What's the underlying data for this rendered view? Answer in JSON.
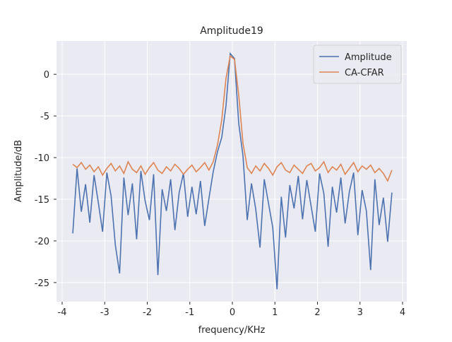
{
  "chart_data": {
    "type": "line",
    "title": "Amplitude19",
    "x_label": "frequency/KHz",
    "y_label": "Amplitude/dB",
    "x": [
      -3.75,
      -3.65,
      -3.55,
      -3.45,
      -3.35,
      -3.25,
      -3.15,
      -3.05,
      -2.95,
      -2.85,
      -2.75,
      -2.65,
      -2.55,
      -2.45,
      -2.35,
      -2.25,
      -2.15,
      -2.05,
      -1.95,
      -1.85,
      -1.75,
      -1.65,
      -1.55,
      -1.45,
      -1.35,
      -1.25,
      -1.15,
      -1.05,
      -0.95,
      -0.85,
      -0.75,
      -0.65,
      -0.55,
      -0.45,
      -0.35,
      -0.25,
      -0.15,
      -0.05,
      0.05,
      0.15,
      0.25,
      0.35,
      0.45,
      0.55,
      0.65,
      0.75,
      0.85,
      0.95,
      1.05,
      1.15,
      1.25,
      1.35,
      1.45,
      1.55,
      1.65,
      1.75,
      1.85,
      1.95,
      2.05,
      2.15,
      2.25,
      2.35,
      2.45,
      2.55,
      2.65,
      2.75,
      2.85,
      2.95,
      3.05,
      3.15,
      3.25,
      3.35,
      3.45,
      3.55,
      3.65,
      3.75
    ],
    "series": [
      {
        "name": "Amplitude",
        "color": "#4c72b0",
        "values": [
          -19.1,
          -11.3,
          -16.5,
          -13.2,
          -17.8,
          -12.1,
          -15.4,
          -18.9,
          -11.8,
          -14.6,
          -20.5,
          -23.9,
          -12.4,
          -16.9,
          -13.1,
          -19.8,
          -11.6,
          -15.2,
          -17.5,
          -12.0,
          -24.1,
          -13.8,
          -16.4,
          -12.6,
          -18.7,
          -14.2,
          -11.9,
          -17.1,
          -13.5,
          -16.8,
          -12.8,
          -18.2,
          -14.9,
          -11.7,
          -9.3,
          -7.6,
          -3.8,
          2.5,
          1.9,
          -5.9,
          -9.8,
          -17.5,
          -13.1,
          -16.2,
          -20.8,
          -12.6,
          -15.5,
          -18.4,
          -25.8,
          -14.7,
          -19.6,
          -13.3,
          -16.1,
          -12.2,
          -17.4,
          -12.7,
          -15.8,
          -18.9,
          -11.9,
          -14.3,
          -20.7,
          -13.5,
          -16.6,
          -12.4,
          -17.9,
          -14.1,
          -11.8,
          -19.3,
          -13.9,
          -16.4,
          -23.5,
          -12.6,
          -18.1,
          -14.8,
          -20.1,
          -14.2
        ]
      },
      {
        "name": "CA-CFAR",
        "color": "#dd8452",
        "values": [
          -10.8,
          -11.2,
          -10.6,
          -11.4,
          -10.9,
          -11.7,
          -11.1,
          -12.1,
          -11.3,
          -10.7,
          -11.6,
          -11.0,
          -11.9,
          -10.5,
          -11.4,
          -11.8,
          -11.0,
          -12.0,
          -11.2,
          -10.6,
          -11.5,
          -11.9,
          -11.1,
          -11.6,
          -10.8,
          -11.3,
          -12.0,
          -11.4,
          -10.9,
          -11.7,
          -11.2,
          -10.6,
          -11.5,
          -10.5,
          -8.5,
          -5.5,
          -0.5,
          2.2,
          1.8,
          -2.5,
          -8.3,
          -11.2,
          -11.9,
          -11.0,
          -11.6,
          -10.7,
          -11.3,
          -12.1,
          -11.1,
          -10.6,
          -11.5,
          -11.8,
          -10.9,
          -11.4,
          -11.9,
          -11.0,
          -10.7,
          -11.6,
          -11.2,
          -10.5,
          -11.8,
          -11.1,
          -11.5,
          -10.8,
          -12.0,
          -11.3,
          -10.6,
          -11.7,
          -11.0,
          -11.4,
          -10.9,
          -11.8,
          -11.3,
          -11.9,
          -12.8,
          -11.5
        ]
      }
    ],
    "xlim": [
      -4.133,
      4.1
    ],
    "ylim": [
      -27.3,
      4.0
    ],
    "xticks": [
      -4,
      -3,
      -2,
      -1,
      0,
      1,
      2,
      3,
      4
    ],
    "yticks": [
      -25,
      -20,
      -15,
      -10,
      -5,
      0
    ],
    "grid": true,
    "legend": "upper right"
  }
}
